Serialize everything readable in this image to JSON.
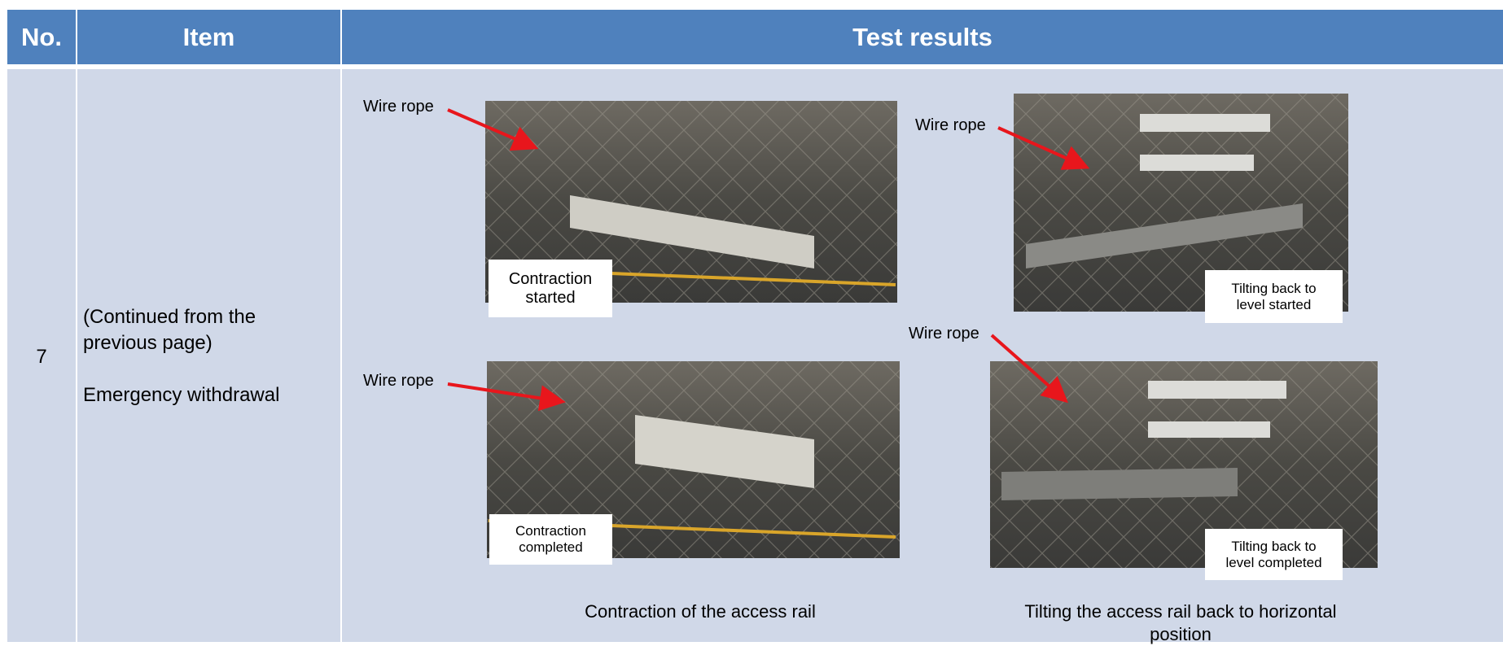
{
  "table": {
    "header": [
      "No.",
      "Item",
      "Test results"
    ],
    "row": {
      "no": "7",
      "item": [
        "(Continued from the previous page)",
        "Emergency withdrawal"
      ],
      "photos": [
        {
          "pointer": "Wire rope",
          "label": "Contraction started"
        },
        {
          "pointer": "Wire rope",
          "label": "Tilting back to level started"
        },
        {
          "pointer": "Wire rope",
          "label": "Contraction completed"
        },
        {
          "pointer": "Wire rope",
          "label": "Tilting back to level completed"
        }
      ],
      "captions": [
        "Contraction of the access rail",
        "Tilting the access rail back to horizontal position"
      ]
    }
  }
}
